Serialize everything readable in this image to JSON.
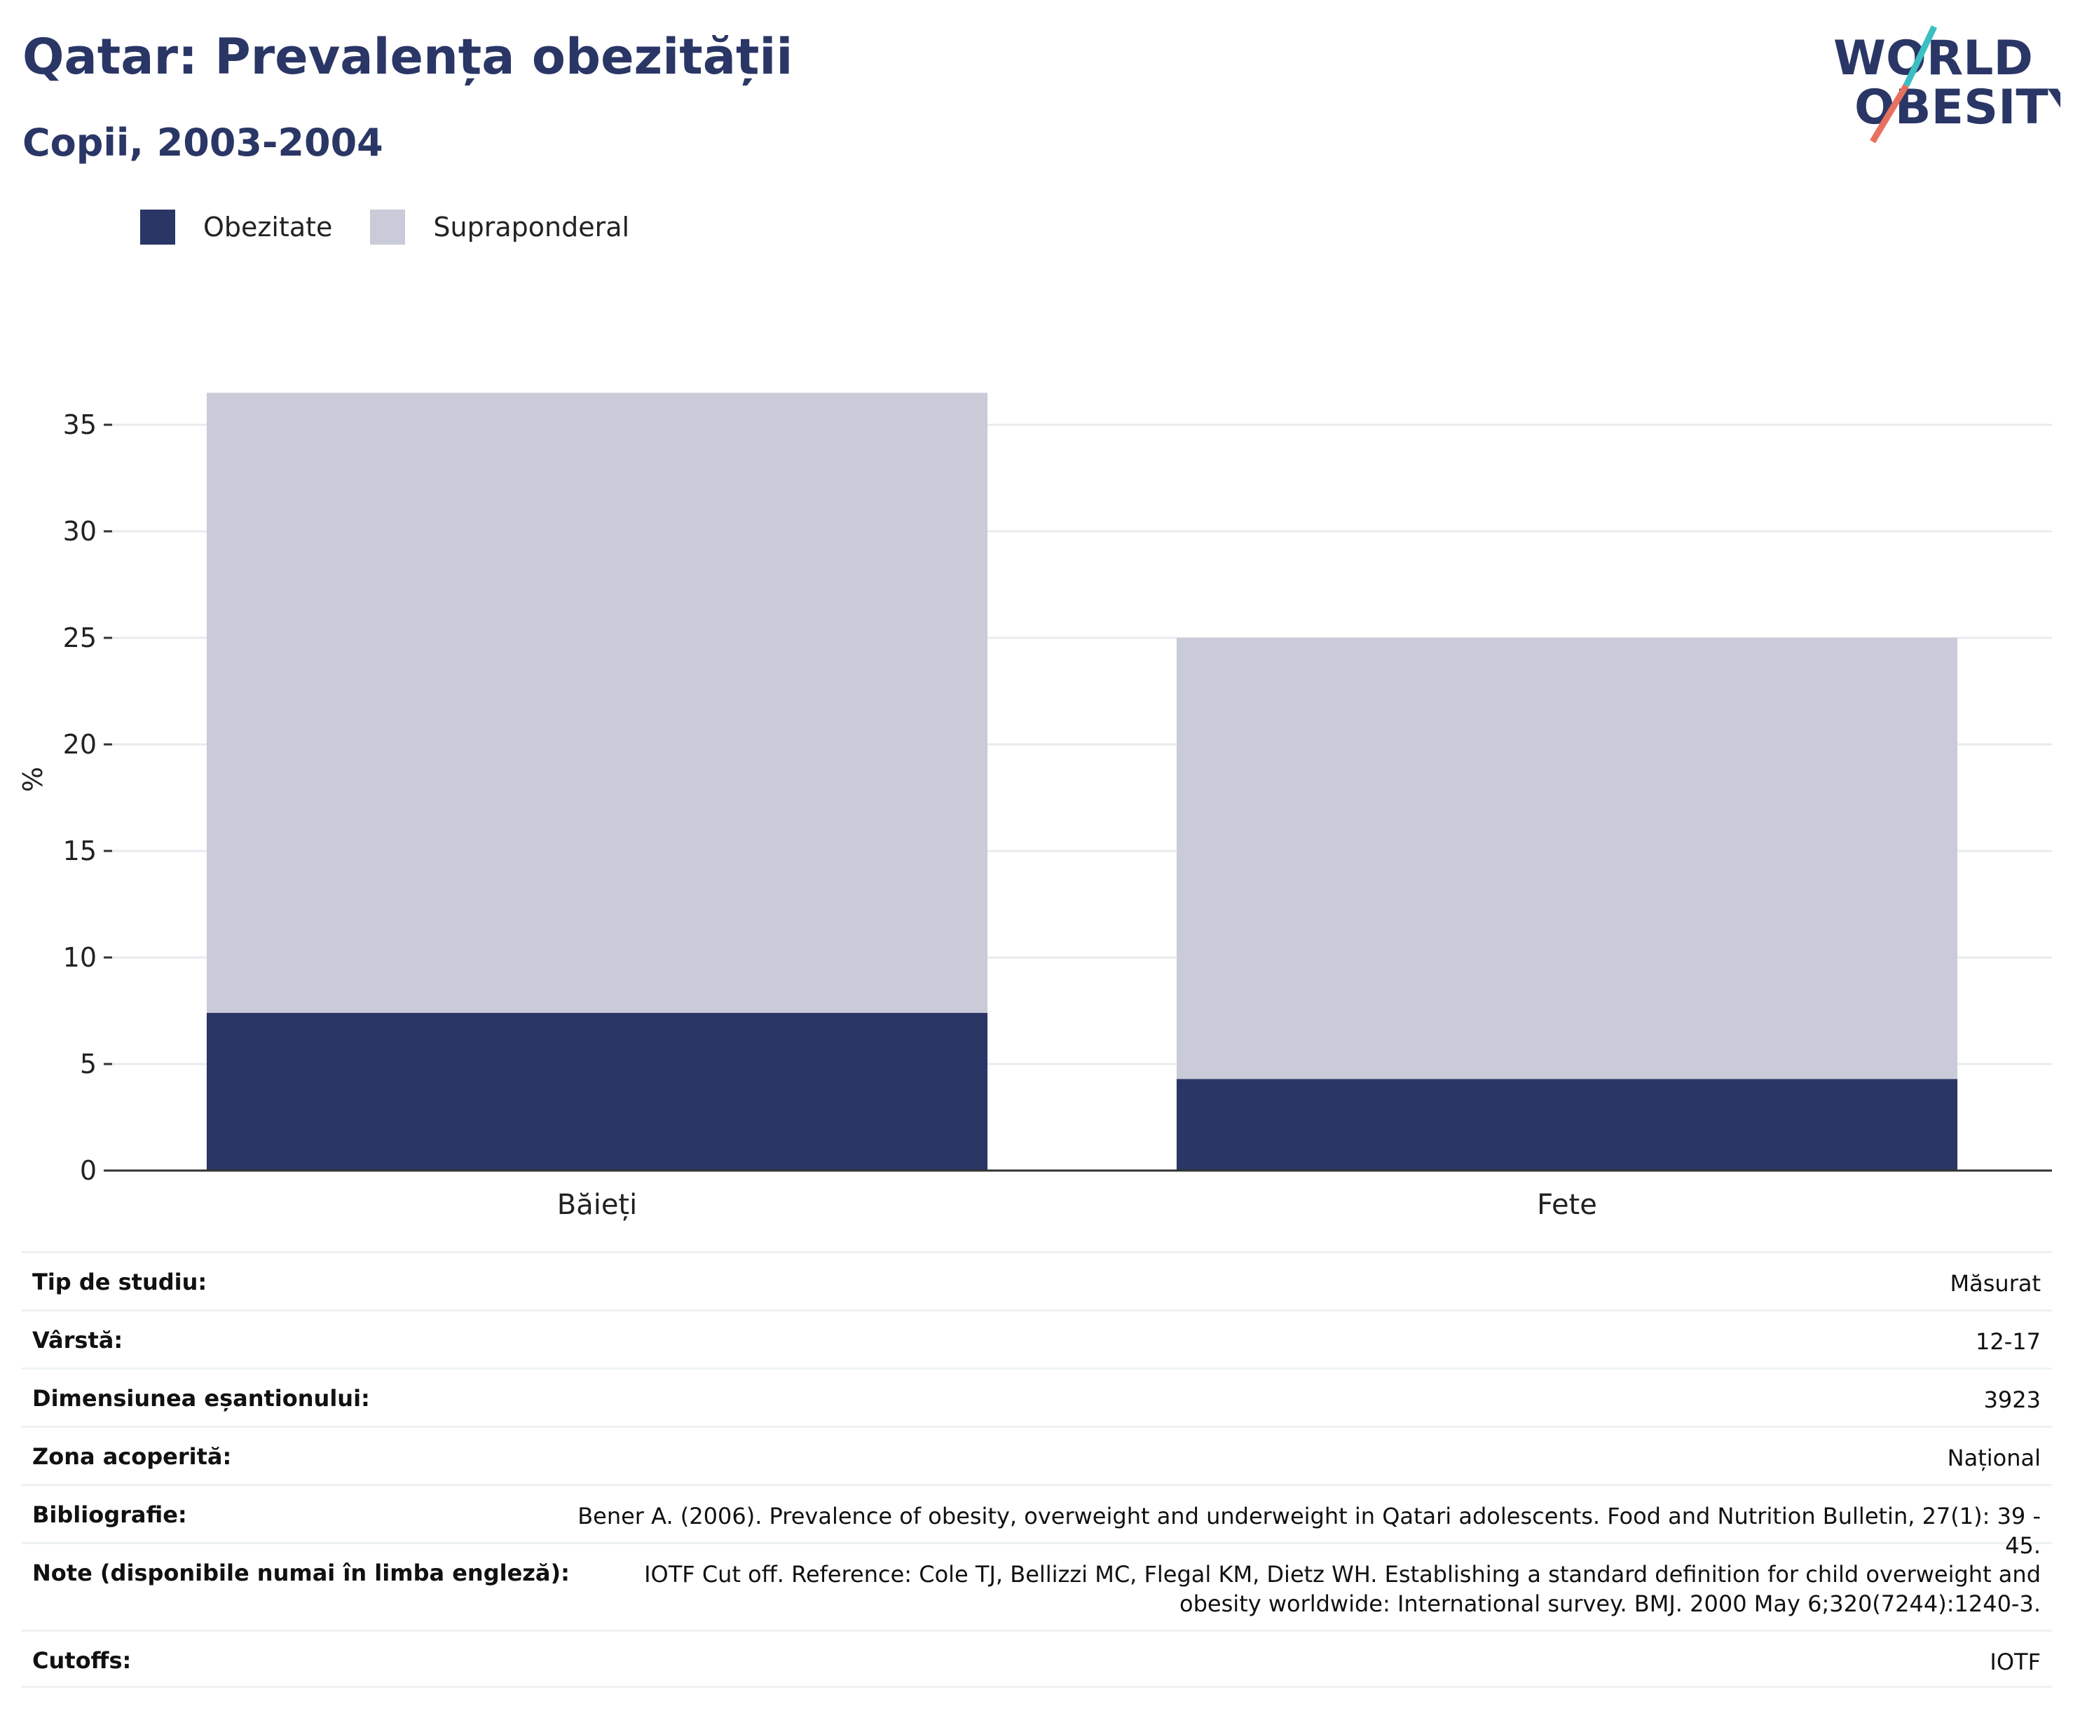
{
  "header": {
    "title": "Qatar: Prevalența obezității",
    "subtitle": "Copii, 2003-2004"
  },
  "logo": {
    "line1": "WORLD",
    "line2": "OBESITY"
  },
  "colors": {
    "obesity": "#2a3665",
    "overweight": "#c9cbd8",
    "brand_navy": "#2a3665",
    "brand_teal": "#3bbfc2",
    "brand_coral": "#e8705e"
  },
  "chart_data": {
    "type": "bar",
    "stacked": true,
    "categories": [
      "Băieți",
      "Fete"
    ],
    "series": [
      {
        "name": "Obezitate",
        "values": [
          7.4,
          4.3
        ]
      },
      {
        "name": "Supraponderal",
        "values": [
          29.1,
          20.7
        ]
      }
    ],
    "ylabel": "%",
    "xlabel": "",
    "ylim": [
      0,
      37.5
    ],
    "yticks": [
      0,
      5,
      10,
      15,
      20,
      25,
      30,
      35
    ],
    "grid": true,
    "legend": "top-left"
  },
  "info": [
    {
      "label": "Tip de studiu:",
      "value": "Măsurat"
    },
    {
      "label": "Vârstă:",
      "value": "12-17"
    },
    {
      "label": "Dimensiunea eșantionului:",
      "value": "3923"
    },
    {
      "label": "Zona acoperită:",
      "value": "Național"
    },
    {
      "label": "Bibliografie:",
      "value": "Bener A. (2006). Prevalence of obesity, overweight and underweight in Qatari adolescents. Food and Nutrition Bulletin, 27(1): 39 - 45."
    },
    {
      "label": "Note (disponibile numai în limba engleză):",
      "value": "IOTF Cut off. Reference: Cole TJ, Bellizzi MC, Flegal KM, Dietz WH. Establishing a standard definition for child overweight and obesity worldwide: International survey. BMJ. 2000 May 6;320(7244):1240-3."
    },
    {
      "label": "Cutoffs:",
      "value": "IOTF"
    }
  ]
}
